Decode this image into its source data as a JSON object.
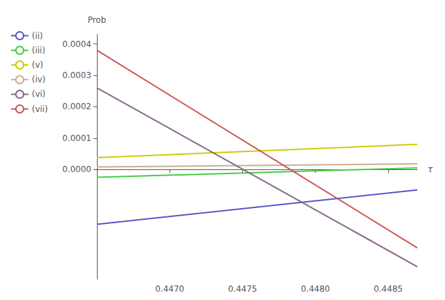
{
  "chart_data": {
    "type": "line",
    "xlabel": "τ",
    "ylabel": "Prob",
    "xlim": [
      0.4465,
      0.4487
    ],
    "ylim": [
      -0.00035,
      0.00043
    ],
    "xticks": [
      {
        "value": 0.447,
        "label": "0.4470"
      },
      0.4475,
      {
        "value": 0.448,
        "label": "0.4480"
      },
      0.4485
    ],
    "yticks": [
      {
        "value": 0.0,
        "label": "0.0000"
      },
      {
        "value": 0.0001,
        "label": "0.0001"
      },
      {
        "value": 0.0002,
        "label": "0.0002"
      },
      {
        "value": 0.0003,
        "label": "0.0003"
      },
      {
        "value": 0.0004,
        "label": "0.0004"
      }
    ],
    "grid": false,
    "legend": "left",
    "series": [
      {
        "name": "(ii)",
        "color": "#5555cc",
        "x": [
          0.4465,
          0.4487
        ],
        "values": [
          -0.000175,
          -6.5e-05
        ]
      },
      {
        "name": "(iii)",
        "color": "#44cc44",
        "x": [
          0.4465,
          0.4487
        ],
        "values": [
          -2.5e-05,
          5e-06
        ]
      },
      {
        "name": "(v)",
        "color": "#cccc00",
        "x": [
          0.4465,
          0.4487
        ],
        "values": [
          3.8e-05,
          8e-05
        ]
      },
      {
        "name": "(iv)",
        "color": "#c8b090",
        "x": [
          0.4465,
          0.4487
        ],
        "values": [
          8e-06,
          1.8e-05
        ]
      },
      {
        "name": "(vi)",
        "color": "#886688",
        "x": [
          0.4465,
          0.4487
        ],
        "values": [
          0.00026,
          -0.00031
        ]
      },
      {
        "name": "(vii)",
        "color": "#cc5555",
        "x": [
          0.4465,
          0.4487
        ],
        "values": [
          0.00038,
          -0.00025
        ]
      }
    ]
  }
}
